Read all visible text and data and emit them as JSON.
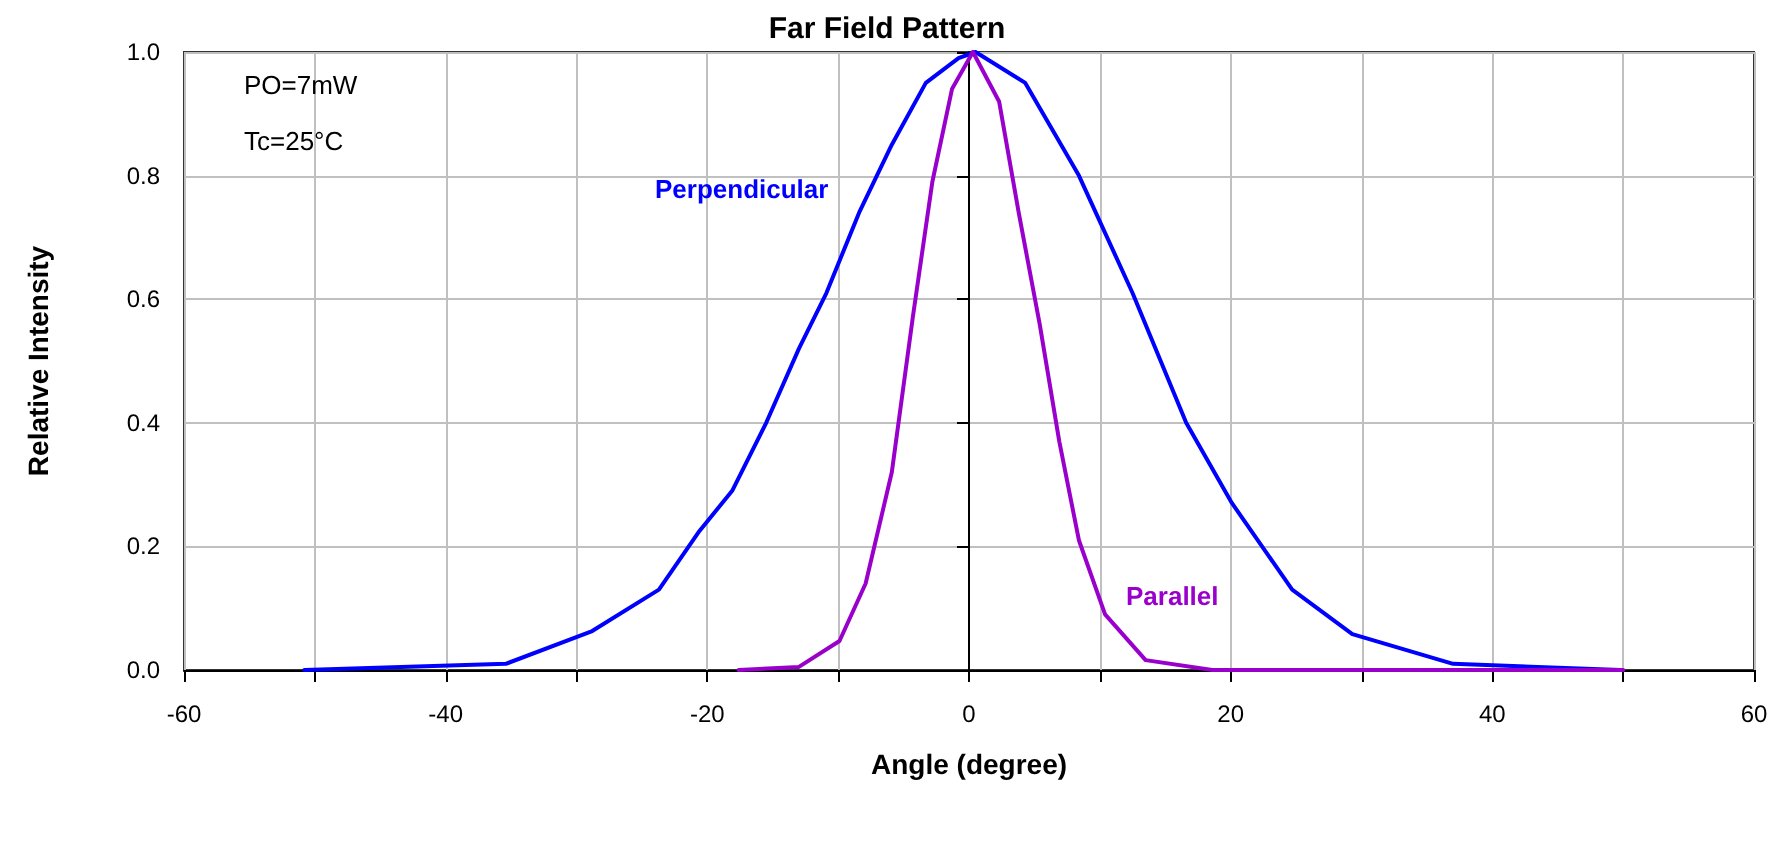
{
  "chart_data": {
    "type": "line",
    "title": "Far Field Pattern",
    "xlabel": "Angle (degree)",
    "ylabel": "Relative Intensity",
    "annotations": [
      "PO=7mW",
      "Tc=25°C"
    ],
    "xlim": [
      -60,
      60
    ],
    "xticks": [
      -60,
      -40,
      -20,
      0,
      20,
      40,
      60
    ],
    "ylim": [
      0,
      1
    ],
    "yticks": [
      {
        "value": 0,
        "label": "0.0"
      },
      {
        "value": 0.2,
        "label": "0.2"
      },
      {
        "value": 0.4,
        "label": "0.4"
      },
      {
        "value": 0.6,
        "label": "0.6"
      },
      {
        "value": 0.8,
        "label": "0.8"
      },
      {
        "value": 1,
        "label": "1.0"
      }
    ],
    "grid": true,
    "legend": false,
    "marker": "none",
    "line_style": "solid",
    "series": [
      {
        "name": "Perpendicular",
        "color": "#0000ff",
        "x": [
          -50.8,
          -35.4,
          -28.8,
          -23.7,
          -20.6,
          -18.1,
          -15.5,
          -13.0,
          -10.9,
          -8.4,
          -5.9,
          -3.3,
          -0.8,
          0.5,
          4.3,
          8.4,
          12.5,
          16.6,
          20.1,
          24.7,
          29.3,
          37.0,
          49.8
        ],
        "values": [
          0,
          0.01,
          0.063,
          0.13,
          0.225,
          0.29,
          0.4,
          0.52,
          0.61,
          0.74,
          0.85,
          0.95,
          0.99,
          1.0,
          0.95,
          0.8,
          0.61,
          0.4,
          0.27,
          0.13,
          0.058,
          0.01,
          0
        ]
      },
      {
        "name": "Parallel",
        "color": "#9900cc",
        "x": [
          -17.6,
          -13.0,
          -9.9,
          -7.9,
          -5.9,
          -4.3,
          -2.8,
          -1.3,
          0.3,
          2.3,
          3.8,
          5.4,
          6.9,
          8.4,
          10.4,
          13.5,
          18.6,
          50
        ],
        "values": [
          0,
          0.005,
          0.047,
          0.14,
          0.32,
          0.57,
          0.79,
          0.94,
          1.0,
          0.92,
          0.74,
          0.56,
          0.37,
          0.21,
          0.09,
          0.016,
          0,
          0
        ]
      }
    ]
  }
}
